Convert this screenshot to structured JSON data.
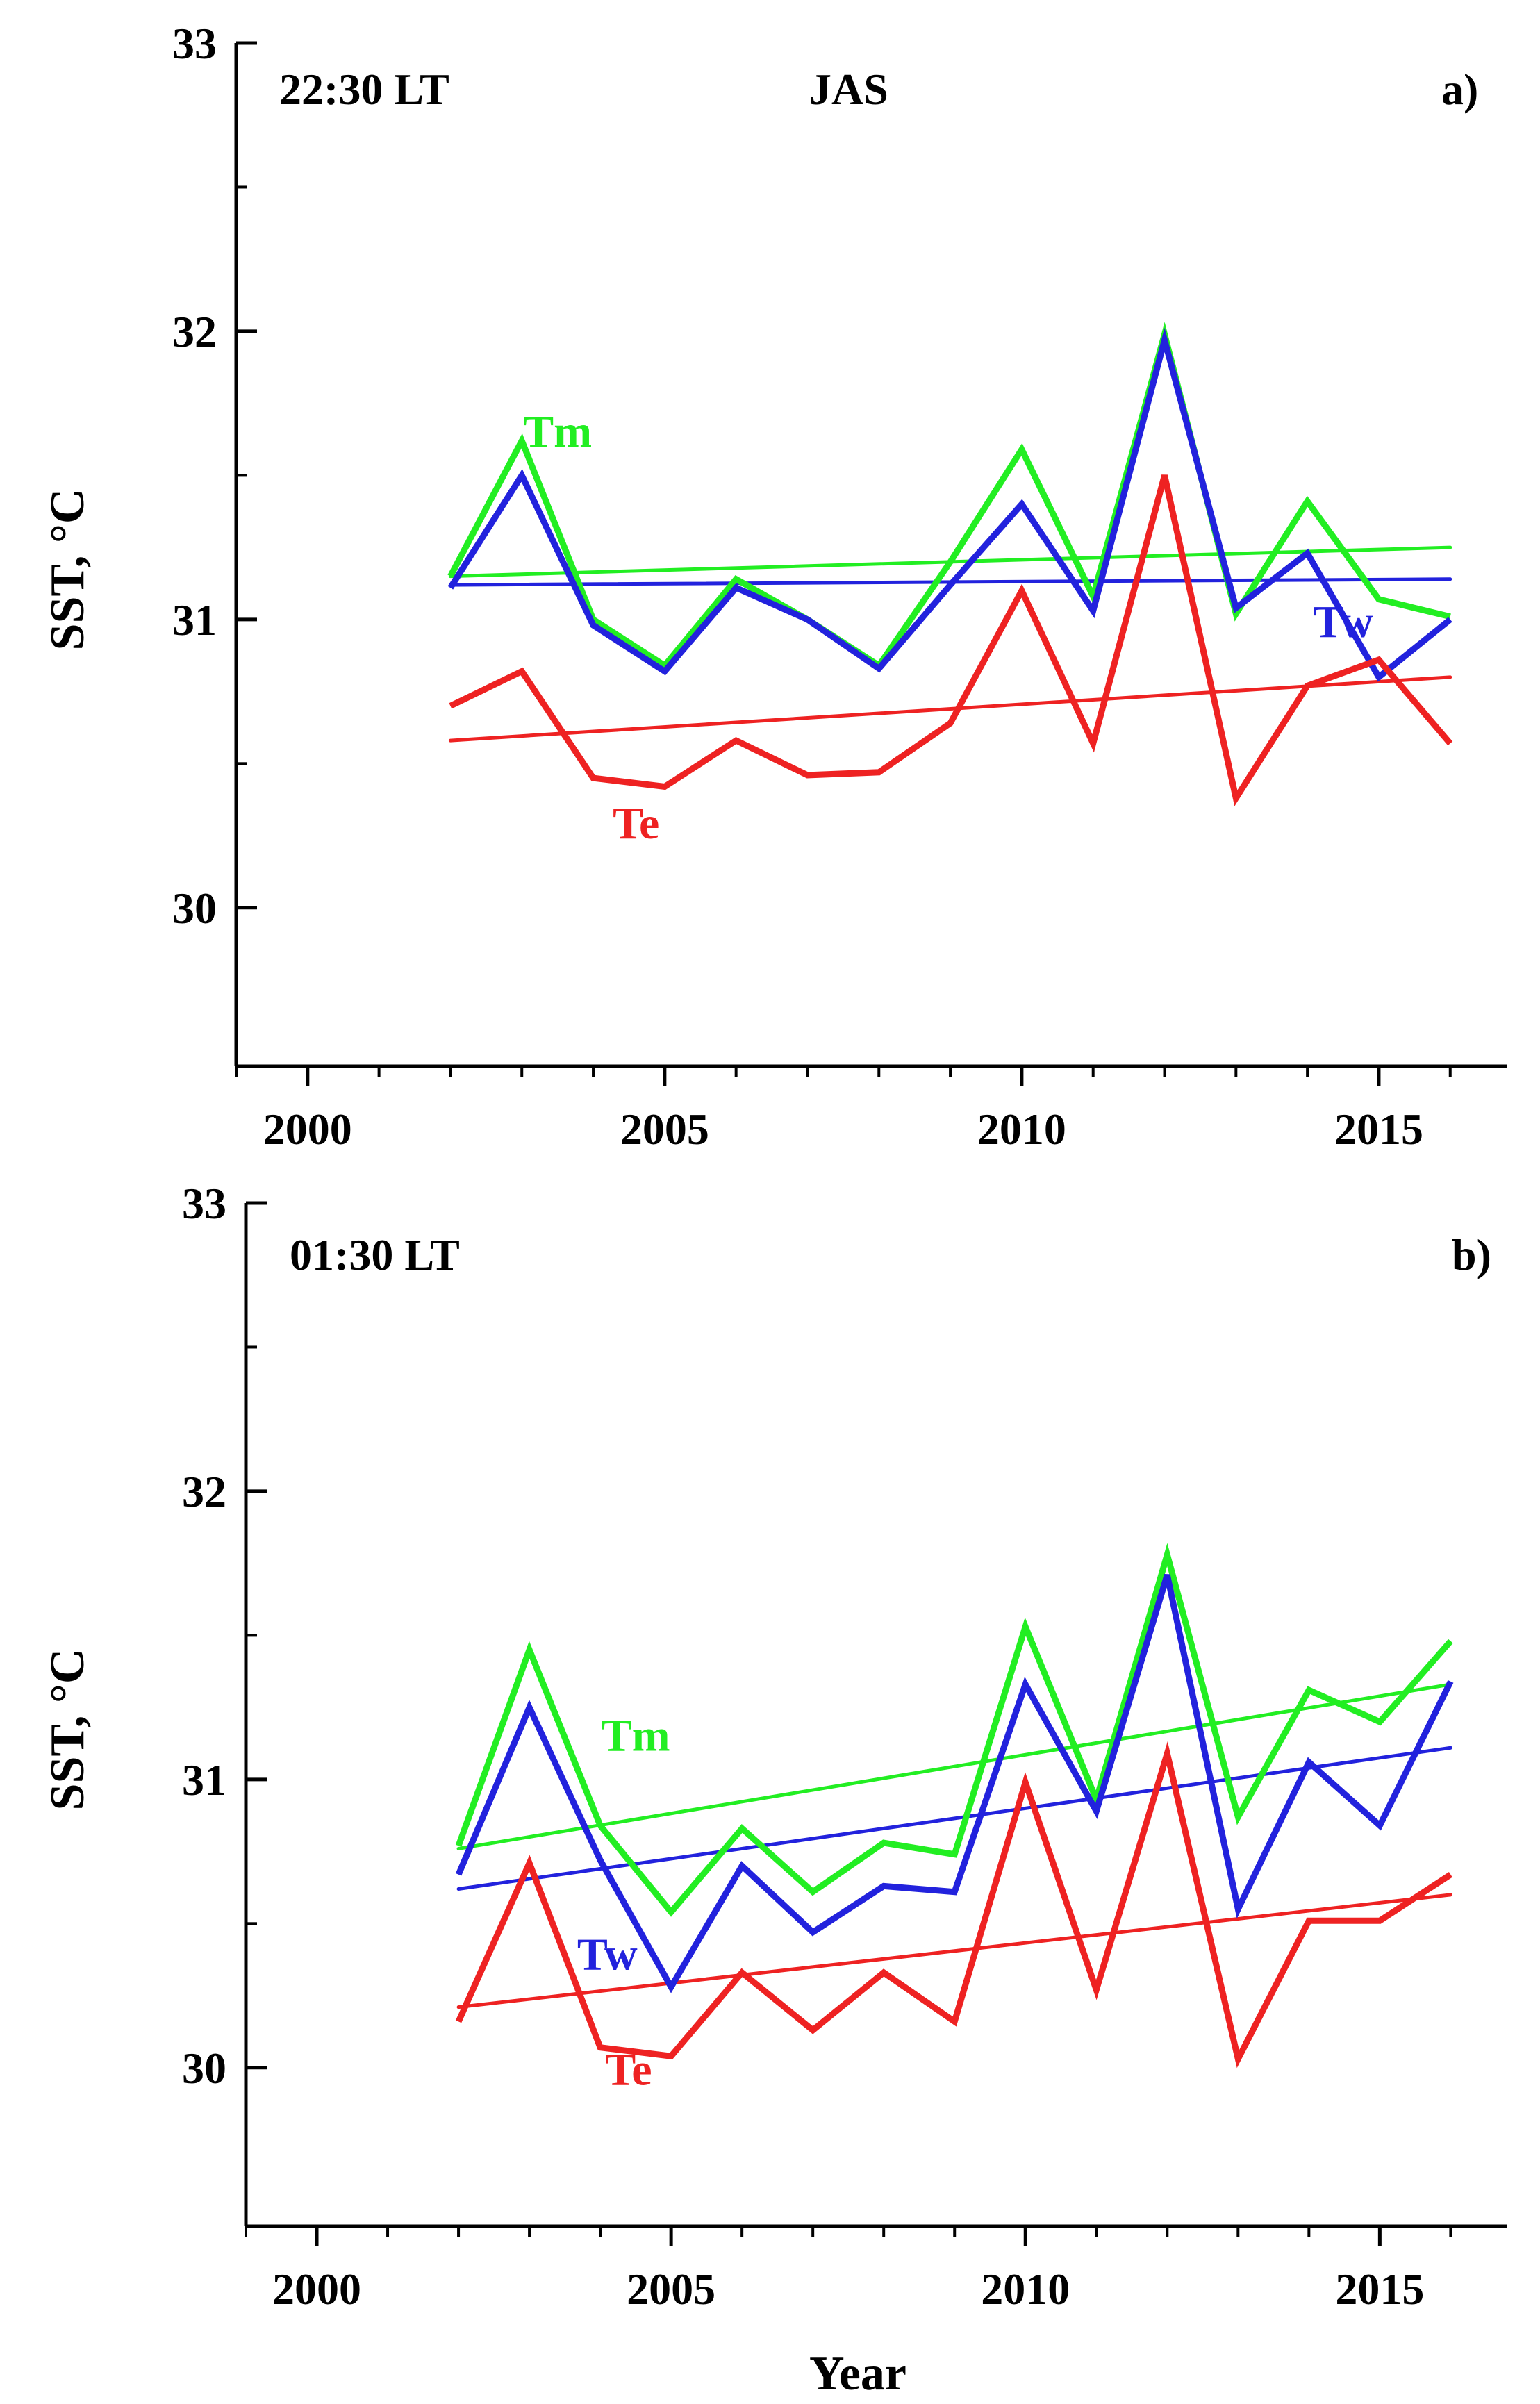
{
  "chart_data": [
    {
      "type": "line",
      "panel_label": "a)",
      "time_label": "22:30 LT",
      "season_label": "JAS",
      "ylabel": "SST, °C",
      "xlabel": "",
      "xlim": [
        1999,
        2016.8
      ],
      "ylim": [
        29.45,
        33.0
      ],
      "xticks": [
        2000,
        2005,
        2010,
        2015
      ],
      "xtick_labels": [
        "2000",
        "2005",
        "2010",
        "2015"
      ],
      "yticks": [
        30,
        31,
        32,
        33
      ],
      "ytick_labels": [
        "30",
        "31",
        "32",
        "33"
      ],
      "x": [
        2002,
        2003,
        2004,
        2005,
        2006,
        2007,
        2008,
        2009,
        2010,
        2011,
        2012,
        2013,
        2014,
        2015,
        2016
      ],
      "series": [
        {
          "name": "Tm",
          "color": "#22ee22",
          "values": [
            31.15,
            31.62,
            31.0,
            30.84,
            31.14,
            31.0,
            30.84,
            31.2,
            31.59,
            31.08,
            31.99,
            31.02,
            31.41,
            31.07,
            31.01
          ],
          "trend": [
            31.15,
            31.25
          ],
          "label_at": [
            2003.5,
            31.6
          ]
        },
        {
          "name": "Tw",
          "color": "#2222dd",
          "values": [
            31.11,
            31.5,
            30.98,
            30.82,
            31.11,
            31.0,
            30.83,
            31.12,
            31.4,
            31.03,
            31.97,
            31.04,
            31.23,
            30.8,
            31.0
          ],
          "trend": [
            31.12,
            31.14
          ],
          "label_at": [
            2014.5,
            30.94
          ]
        },
        {
          "name": "Te",
          "color": "#ee2222",
          "values": [
            30.7,
            30.82,
            30.45,
            30.42,
            30.58,
            30.46,
            30.47,
            30.64,
            31.1,
            30.57,
            31.5,
            30.38,
            30.77,
            30.86,
            30.57
          ],
          "trend": [
            30.58,
            30.8
          ],
          "label_at": [
            2004.6,
            30.24
          ]
        }
      ]
    },
    {
      "type": "line",
      "panel_label": "b)",
      "time_label": "01:30 LT",
      "ylabel": "SST, °C",
      "xlabel": "Year",
      "xlim": [
        1999,
        2016.8
      ],
      "ylim": [
        29.45,
        33.0
      ],
      "xticks": [
        2000,
        2005,
        2010,
        2015
      ],
      "xtick_labels": [
        "2000",
        "2005",
        "2010",
        "2015"
      ],
      "yticks": [
        30,
        31,
        32,
        33
      ],
      "ytick_labels": [
        "30",
        "31",
        "32",
        "33"
      ],
      "x": [
        2002,
        2003,
        2004,
        2005,
        2006,
        2007,
        2008,
        2009,
        2010,
        2011,
        2012,
        2013,
        2014,
        2015,
        2016
      ],
      "series": [
        {
          "name": "Tm",
          "color": "#22ee22",
          "values": [
            30.77,
            31.45,
            30.84,
            30.54,
            30.83,
            30.61,
            30.78,
            30.74,
            31.53,
            30.93,
            31.78,
            30.87,
            31.31,
            31.2,
            31.48
          ],
          "trend": [
            30.76,
            31.33
          ],
          "label_at": [
            2004.5,
            31.1
          ]
        },
        {
          "name": "Tw",
          "color": "#2222dd",
          "values": [
            30.67,
            31.25,
            30.72,
            30.28,
            30.7,
            30.47,
            30.63,
            30.61,
            31.33,
            30.89,
            31.71,
            30.55,
            31.06,
            30.84,
            31.34
          ],
          "trend": [
            30.62,
            31.11
          ],
          "label_at": [
            2004.1,
            30.34
          ]
        },
        {
          "name": "Te",
          "color": "#ee2222",
          "values": [
            30.16,
            30.71,
            30.07,
            30.04,
            30.33,
            30.13,
            30.33,
            30.16,
            30.99,
            30.27,
            31.09,
            30.03,
            30.51,
            30.51,
            30.67
          ],
          "trend": [
            30.21,
            30.6
          ],
          "label_at": [
            2004.4,
            29.94
          ]
        }
      ]
    }
  ]
}
